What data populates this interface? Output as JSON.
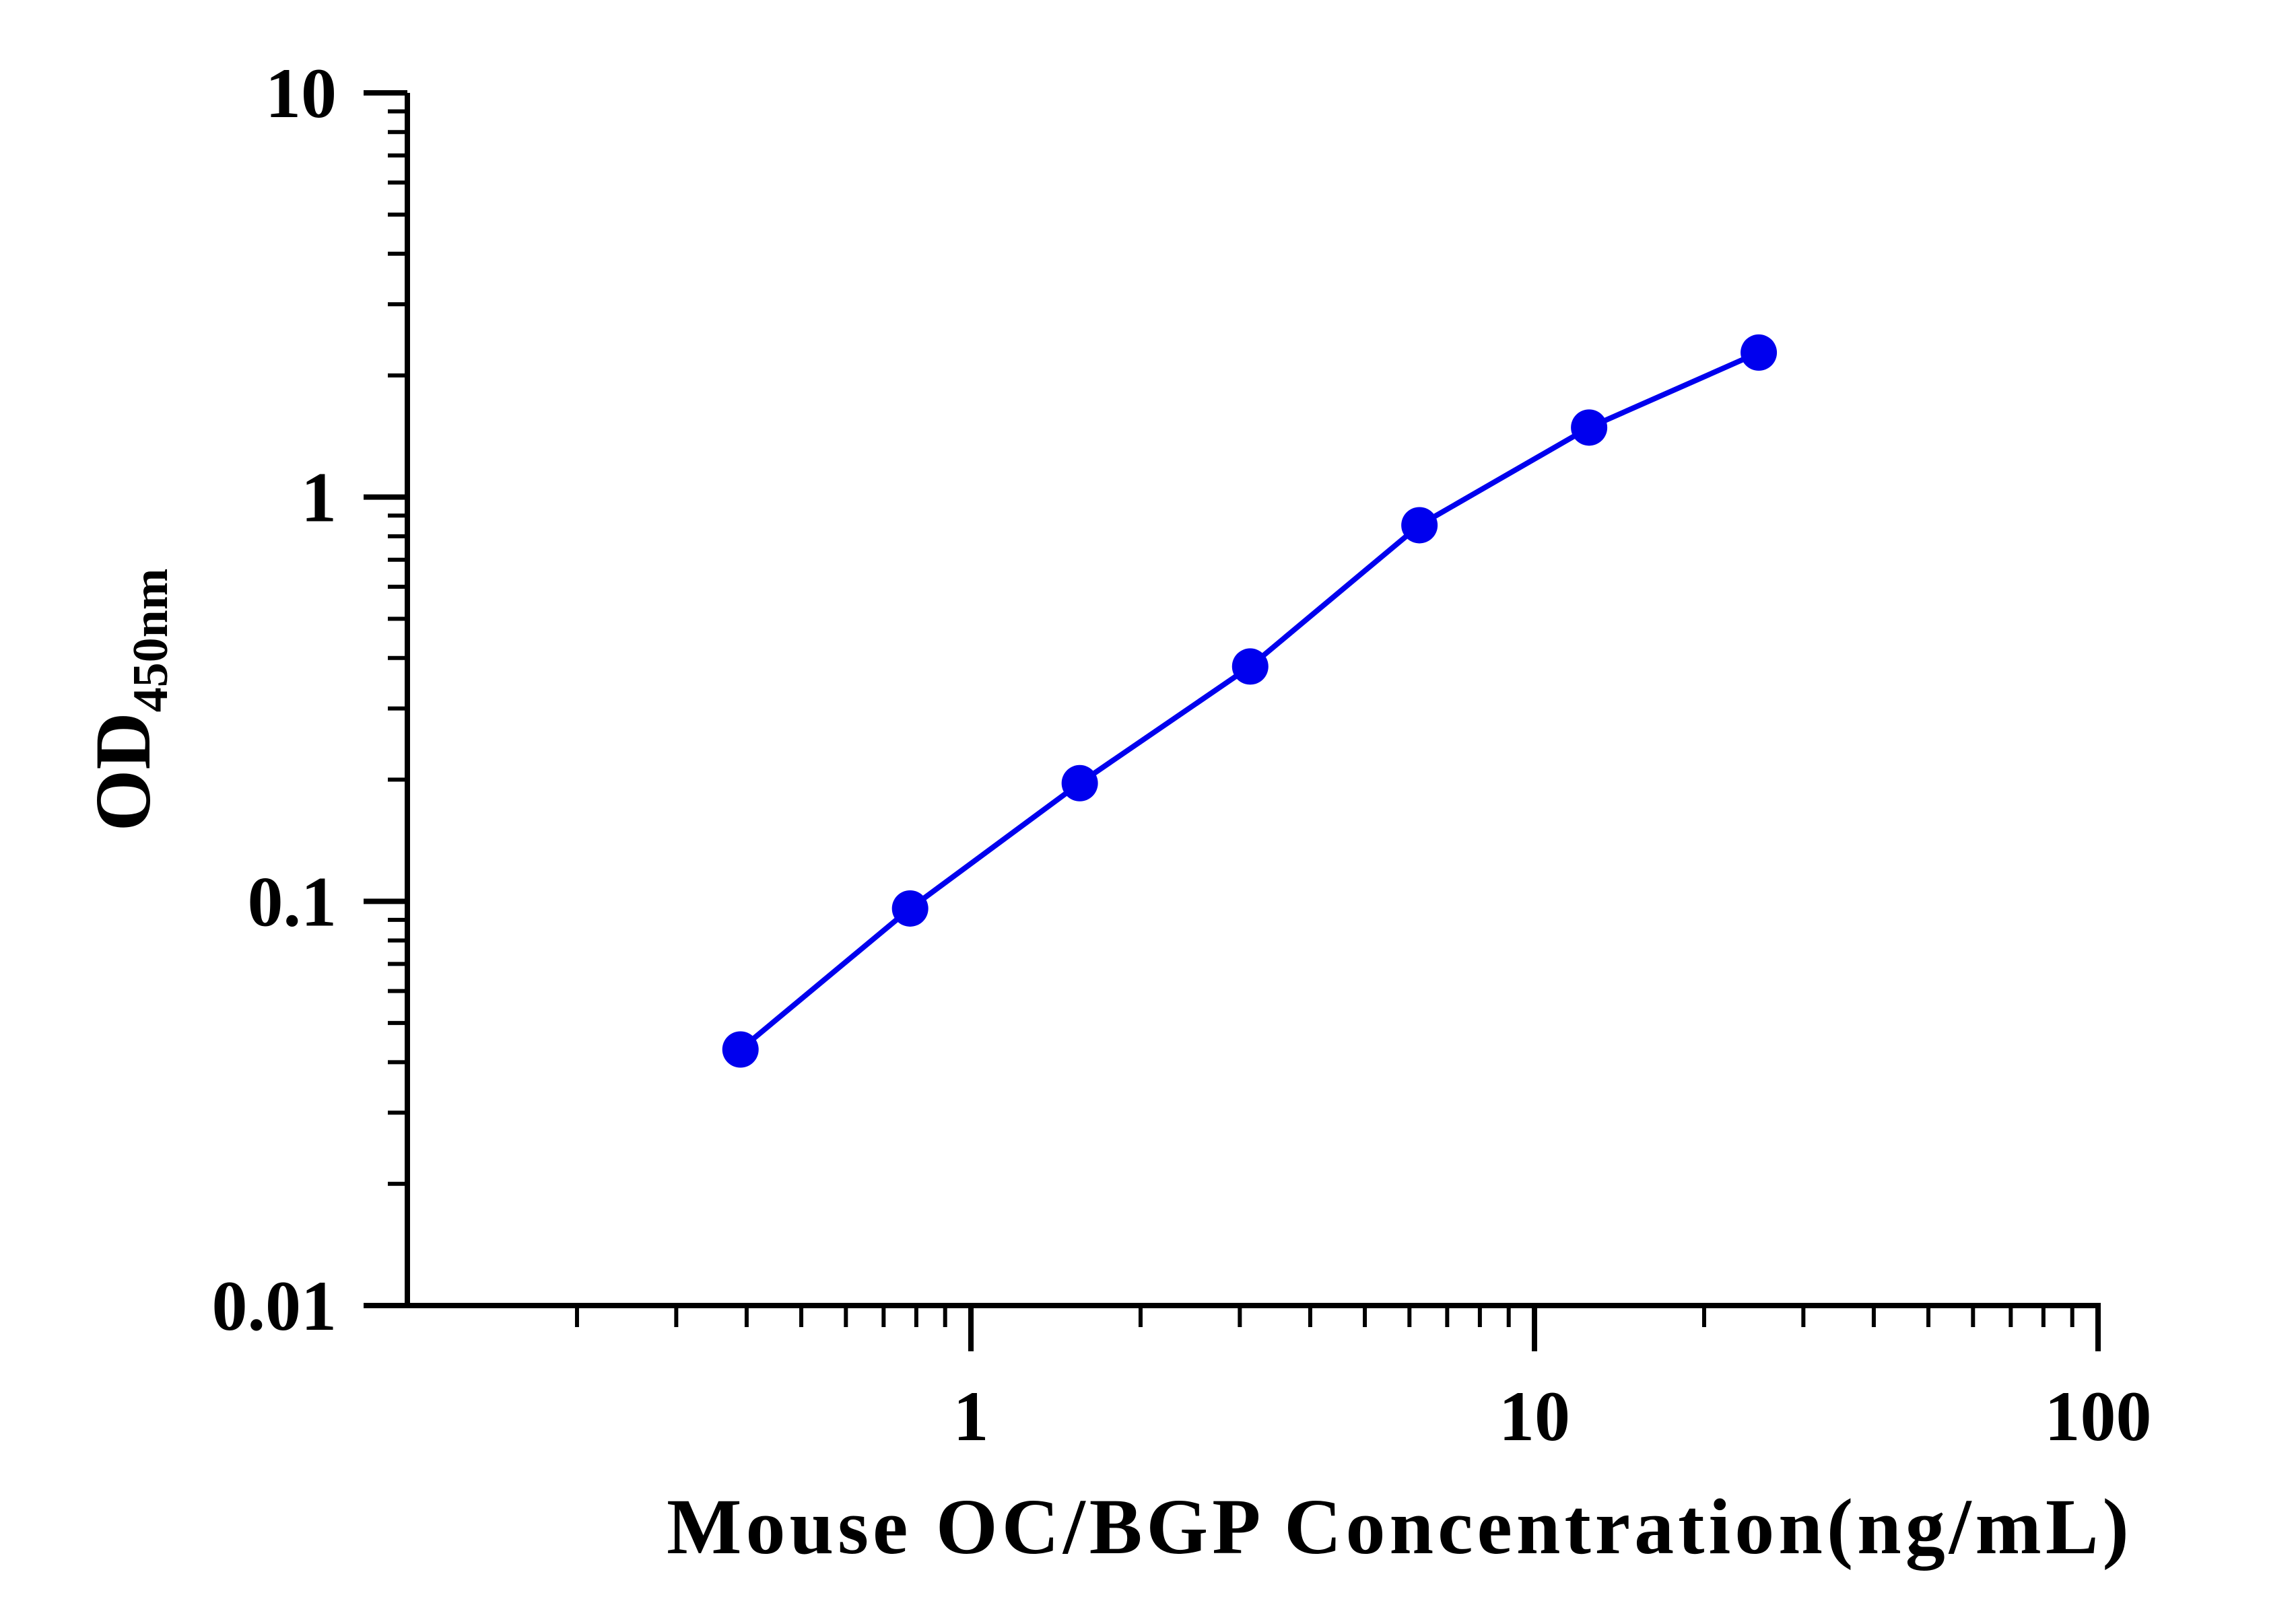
{
  "chart_data": {
    "type": "line",
    "title": "",
    "xlabel": "Mouse OC/BGP Concentration(ng/mL)",
    "ylabel": {
      "main": "OD",
      "subscript": "450nm"
    },
    "x_scale": "log",
    "y_scale": "log",
    "xlim": [
      0.1,
      100
    ],
    "ylim": [
      0.01,
      10
    ],
    "x_ticks": [
      {
        "value": 1,
        "label": "1"
      },
      {
        "value": 10,
        "label": "10"
      },
      {
        "value": 100,
        "label": "100"
      }
    ],
    "y_ticks": [
      {
        "value": 0.01,
        "label": "0.01"
      },
      {
        "value": 0.1,
        "label": "0.1"
      },
      {
        "value": 1,
        "label": "1"
      },
      {
        "value": 10,
        "label": "10"
      }
    ],
    "grid": false,
    "legend": "none",
    "series": [
      {
        "color": "#0000ee",
        "marker": "circle",
        "x": [
          0.39,
          0.78,
          1.56,
          3.13,
          6.25,
          12.5,
          25
        ],
        "y": [
          0.043,
          0.096,
          0.196,
          0.381,
          0.852,
          1.486,
          2.278
        ]
      }
    ]
  }
}
